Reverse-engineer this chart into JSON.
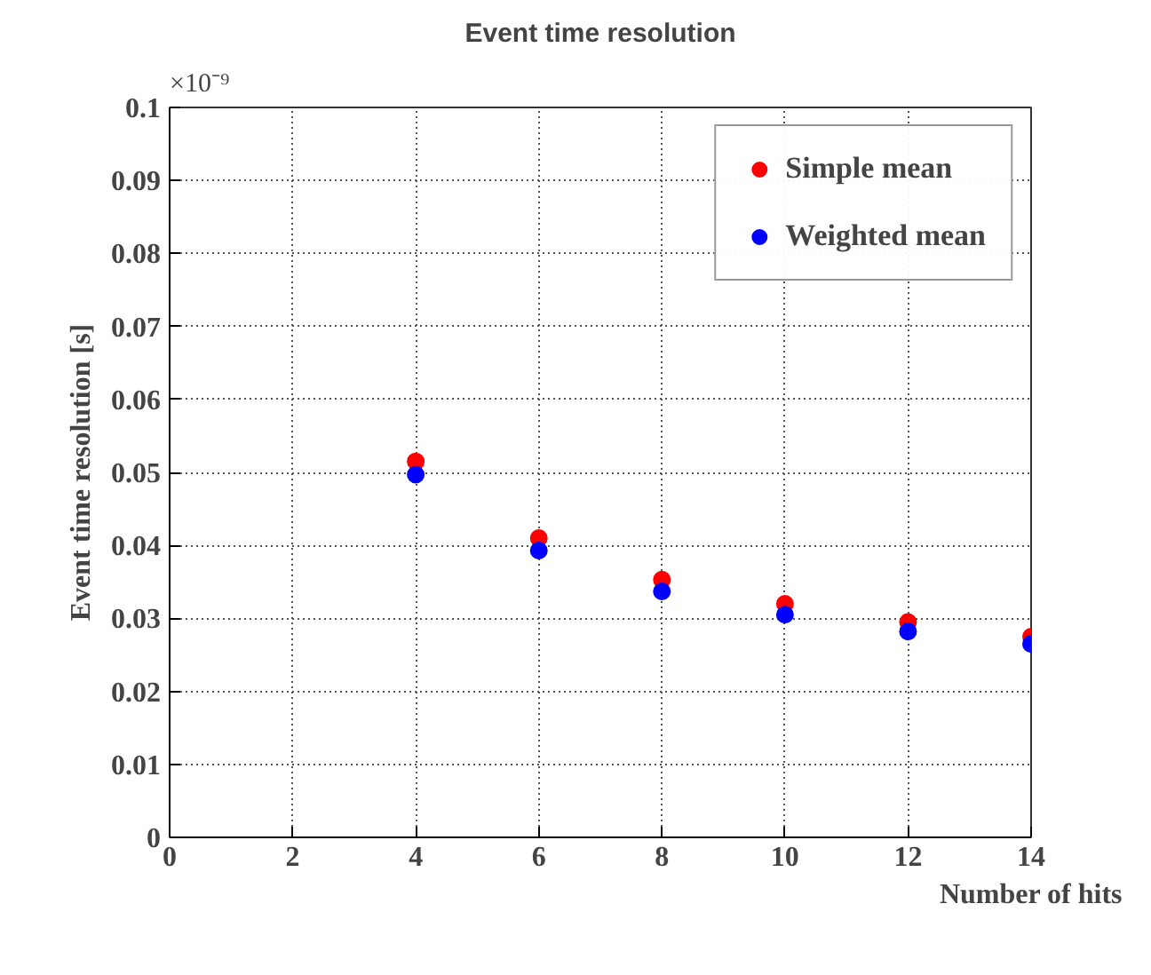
{
  "chart_data": {
    "type": "scatter",
    "title": "Event time resolution",
    "xlabel": "Number of hits",
    "ylabel": "Event time resolution [s]",
    "annotations": [
      "×10⁻⁹"
    ],
    "x": [
      4,
      6,
      8,
      10,
      12,
      14
    ],
    "series": [
      {
        "name": "Simple mean",
        "color": "#ff0000",
        "values": [
          0.0515,
          0.041,
          0.0353,
          0.032,
          0.0295,
          0.0275
        ]
      },
      {
        "name": "Weighted mean",
        "color": "#0000ff",
        "values": [
          0.0497,
          0.0393,
          0.0337,
          0.0305,
          0.0282,
          0.0265
        ]
      }
    ],
    "xlim": [
      0,
      14
    ],
    "ylim": [
      0,
      0.1
    ],
    "xticks": [
      0,
      2,
      4,
      6,
      8,
      10,
      12,
      14
    ],
    "yticks": [
      0,
      0.01,
      0.02,
      0.03,
      0.04,
      0.05,
      0.06,
      0.07,
      0.08,
      0.09,
      0.1
    ],
    "grid": true,
    "legend": "top right",
    "marker": "circle"
  }
}
